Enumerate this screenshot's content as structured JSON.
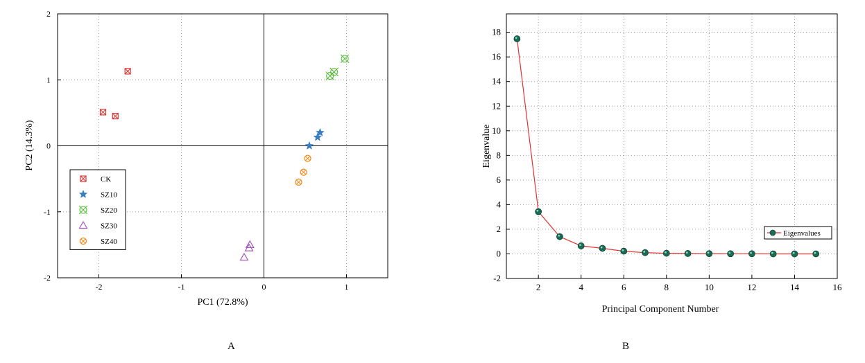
{
  "panels": {
    "left_label": "A",
    "right_label": "B"
  },
  "chart_data": [
    {
      "type": "scatter",
      "title": "",
      "xlabel": "PC1 (72.8%)",
      "ylabel": "PC2 (14.3%)",
      "xlim": [
        -2.5,
        1.5
      ],
      "ylim": [
        -2,
        2
      ],
      "xticks": [
        -2,
        -1,
        0,
        1
      ],
      "yticks": [
        -2,
        -1,
        0,
        1,
        2
      ],
      "grid": true,
      "zero_lines": true,
      "legend_position": "lower-left",
      "series": [
        {
          "name": "CK",
          "color": "#e0312f",
          "marker": "square-x",
          "points": [
            [
              -1.65,
              1.13
            ],
            [
              -1.95,
              0.51
            ],
            [
              -1.8,
              0.45
            ]
          ]
        },
        {
          "name": "SZ10",
          "color": "#3a7ebf",
          "marker": "star",
          "points": [
            [
              0.55,
              0.0
            ],
            [
              0.65,
              0.13
            ],
            [
              0.68,
              0.2
            ]
          ]
        },
        {
          "name": "SZ20",
          "color": "#5cbf3e",
          "marker": "x-circle",
          "points": [
            [
              0.8,
              1.06
            ],
            [
              0.85,
              1.12
            ],
            [
              0.98,
              1.32
            ]
          ]
        },
        {
          "name": "SZ30",
          "color": "#a35bb7",
          "marker": "triangle",
          "points": [
            [
              -0.18,
              -1.55
            ],
            [
              -0.17,
              -1.5
            ],
            [
              -0.24,
              -1.69
            ]
          ]
        },
        {
          "name": "SZ40",
          "color": "#f28a1c",
          "marker": "circle-x",
          "points": [
            [
              0.53,
              -0.19
            ],
            [
              0.48,
              -0.4
            ],
            [
              0.42,
              -0.55
            ]
          ]
        }
      ]
    },
    {
      "type": "line",
      "title": "",
      "xlabel": "Principal Component Number",
      "ylabel": "Eigenvalue",
      "xlim": [
        0.5,
        16
      ],
      "ylim": [
        -2,
        19.5
      ],
      "xticks": [
        2,
        4,
        6,
        8,
        10,
        12,
        14,
        16
      ],
      "yticks": [
        -2,
        0,
        2,
        4,
        6,
        8,
        10,
        12,
        14,
        16,
        18
      ],
      "grid": true,
      "legend_position": "right",
      "line_color": "#e0312f",
      "marker_color": "#1a6b55",
      "series": [
        {
          "name": "Eigenvalues",
          "x": [
            1,
            2,
            3,
            4,
            5,
            6,
            7,
            8,
            9,
            10,
            11,
            12,
            13,
            14,
            15
          ],
          "y": [
            17.47,
            3.43,
            1.4,
            0.65,
            0.45,
            0.22,
            0.1,
            0.05,
            0.03,
            0.02,
            0.01,
            0.01,
            0.0,
            0.0,
            0.0
          ]
        }
      ]
    }
  ]
}
